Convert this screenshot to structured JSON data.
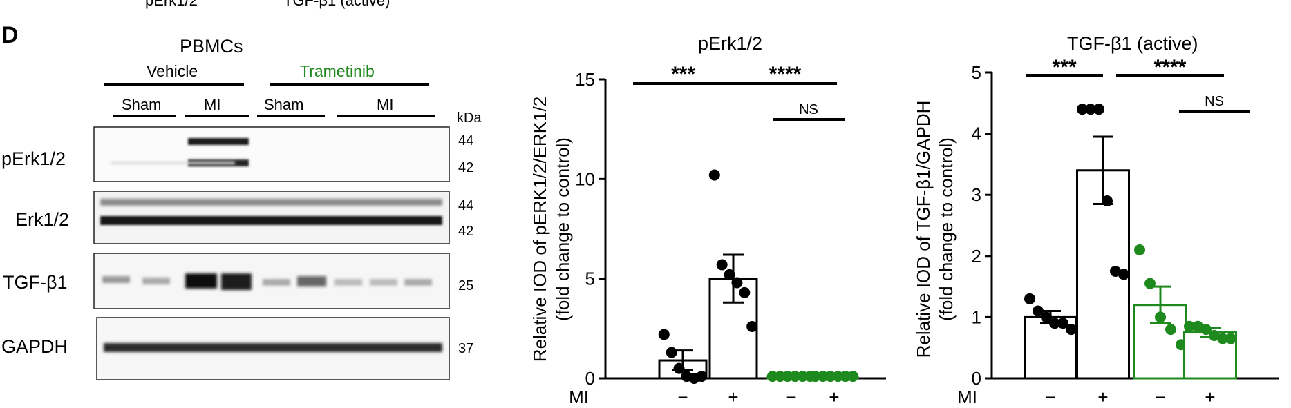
{
  "top_cut": {
    "left": "pErk1/2",
    "right": "TGF-β1 (active)"
  },
  "panel_label": "D",
  "blot": {
    "cell_type": "PBMCs",
    "group_vehicle": "Vehicle",
    "group_trametinib": "Trametinib",
    "sham_1": "Sham",
    "mi_1": "MI",
    "sham_2": "Sham",
    "mi_2": "MI",
    "kda_label": "kDa",
    "rows": [
      {
        "label": "pErk1/2",
        "mw": [
          "44",
          "42"
        ]
      },
      {
        "label": "Erk1/2",
        "mw": [
          "44",
          "42"
        ]
      },
      {
        "label": "TGF-β1",
        "mw": [
          "25"
        ]
      },
      {
        "label": "GAPDH",
        "mw": [
          "37"
        ]
      }
    ]
  },
  "colors": {
    "black": "#000000",
    "green": "#1e8a1e"
  },
  "chart_data": [
    {
      "type": "bar",
      "title": "pErk1/2",
      "ylabel": "Relative IOD of pERK1/2/ERK1/2 (fold change to control)",
      "ylabel_lines": [
        "Relative IOD of pERK1/2/ERK1/2",
        "(fold change to control)"
      ],
      "ylim": [
        0,
        15
      ],
      "yticks": [
        "0",
        "5",
        "10",
        "15"
      ],
      "mi_row_label": "MI",
      "categories": [
        "−",
        "+",
        "−",
        "+"
      ],
      "bar_colors": [
        "black",
        "black",
        "green",
        "green"
      ],
      "values": [
        0.9,
        5.0,
        0.1,
        0.1
      ],
      "sem": [
        0.5,
        1.2,
        0.05,
        0.05
      ],
      "points": [
        [
          2.2,
          1.3,
          0.5,
          0.1,
          0.0,
          0.1
        ],
        [
          10.2,
          5.7,
          5.2,
          4.8,
          4.3,
          2.6
        ],
        [
          0.1,
          0.1,
          0.1,
          0.1,
          0.1,
          0.1
        ],
        [
          0.1,
          0.1,
          0.1,
          0.1,
          0.1,
          0.1
        ]
      ],
      "significance": [
        {
          "label": "***"
        },
        {
          "label": "****"
        },
        {
          "label": "NS"
        }
      ]
    },
    {
      "type": "bar",
      "title": "TGF-β1 (active)",
      "ylabel": "Relative IOD of TGF-β1/GAPDH (fold change to control)",
      "ylabel_lines": [
        "Relative IOD of TGF-β1/GAPDH",
        "(fold change to control)"
      ],
      "ylim": [
        0,
        5
      ],
      "yticks": [
        "0",
        "1",
        "2",
        "3",
        "4",
        "5"
      ],
      "mi_row_label": "MI",
      "categories": [
        "−",
        "+",
        "−",
        "+"
      ],
      "bar_colors": [
        "black",
        "black",
        "green",
        "green"
      ],
      "values": [
        1.0,
        3.4,
        1.2,
        0.75
      ],
      "sem": [
        0.1,
        0.55,
        0.3,
        0.07
      ],
      "points": [
        [
          1.3,
          1.1,
          1.0,
          0.9,
          0.9,
          0.8
        ],
        [
          4.4,
          4.4,
          4.4,
          2.9,
          1.75,
          1.7
        ],
        [
          2.1,
          1.55,
          1.0,
          0.8,
          0.55
        ],
        [
          0.85,
          0.85,
          0.8,
          0.7,
          0.65,
          0.65
        ]
      ],
      "significance": [
        {
          "label": "***"
        },
        {
          "label": "****"
        },
        {
          "label": "NS"
        }
      ]
    }
  ]
}
